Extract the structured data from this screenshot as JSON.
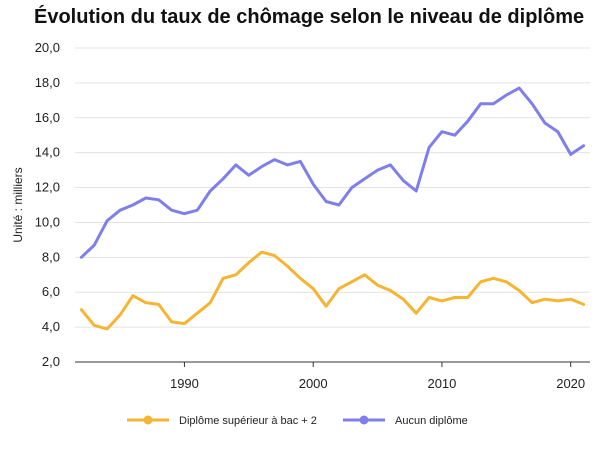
{
  "chart_data": {
    "type": "line",
    "title": "Évolution du taux de chômage selon le niveau de diplôme",
    "xlabel": "",
    "ylabel": "Unité : milliers",
    "xlim": [
      1981.5,
      2021.5
    ],
    "ylim": [
      2,
      20
    ],
    "x_ticks": [
      "1990",
      "2000",
      "2010",
      "2020"
    ],
    "y_ticks": [
      "2,0",
      "4,0",
      "6,0",
      "8,0",
      "10,0",
      "12,0",
      "14,0",
      "16,0",
      "18,0",
      "20,0"
    ],
    "grid": "horizontal",
    "legend_position": "bottom",
    "x": [
      1982,
      1983,
      1984,
      1985,
      1986,
      1987,
      1988,
      1989,
      1990,
      1991,
      1992,
      1993,
      1994,
      1995,
      1996,
      1997,
      1998,
      1999,
      2000,
      2001,
      2002,
      2003,
      2004,
      2005,
      2006,
      2007,
      2008,
      2009,
      2010,
      2011,
      2012,
      2013,
      2014,
      2015,
      2016,
      2017,
      2018,
      2019,
      2020,
      2021
    ],
    "series": [
      {
        "name": "Diplôme supérieur à bac + 2",
        "color": "#F5B431",
        "values": [
          5.0,
          4.1,
          3.9,
          4.7,
          5.8,
          5.4,
          5.3,
          4.3,
          4.2,
          4.8,
          5.4,
          6.8,
          7.0,
          7.7,
          8.3,
          8.1,
          7.5,
          6.8,
          6.2,
          5.2,
          6.2,
          6.6,
          7.0,
          6.4,
          6.1,
          5.6,
          4.8,
          5.7,
          5.5,
          5.7,
          5.7,
          6.6,
          6.8,
          6.6,
          6.1,
          5.4,
          5.6,
          5.5,
          5.6,
          5.3
        ]
      },
      {
        "name": "Aucun diplôme",
        "color": "#7F7FEC",
        "values": [
          8.0,
          8.7,
          10.1,
          10.7,
          11.0,
          11.4,
          11.3,
          10.7,
          10.5,
          10.7,
          11.8,
          12.5,
          13.3,
          12.7,
          13.2,
          13.6,
          13.3,
          13.5,
          12.2,
          11.2,
          11.0,
          12.0,
          12.5,
          13.0,
          13.3,
          12.4,
          11.8,
          14.3,
          15.2,
          15.0,
          15.8,
          16.8,
          16.8,
          17.3,
          17.7,
          16.8,
          15.7,
          15.2,
          13.9,
          14.4
        ]
      }
    ]
  }
}
